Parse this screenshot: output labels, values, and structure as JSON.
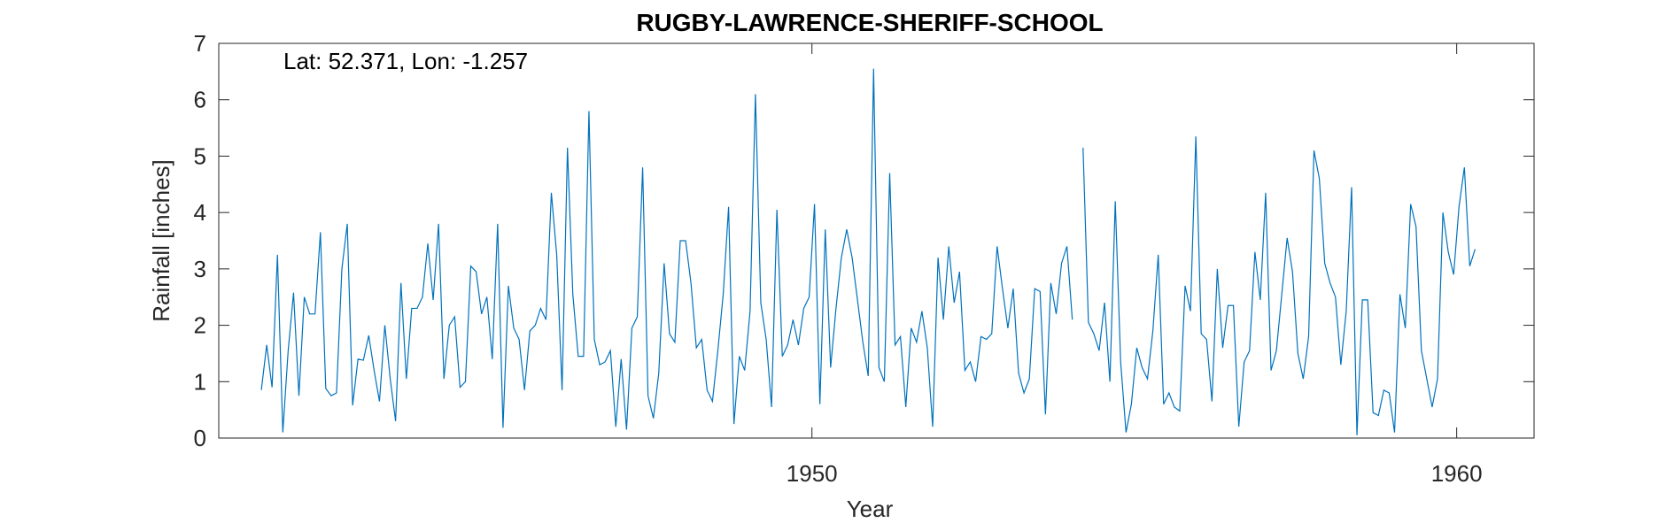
{
  "chart_data": {
    "type": "line",
    "title": "RUGBY-LAWRENCE-SHERIFF-SCHOOL",
    "annotation": "Lat: 52.371, Lon: -1.257",
    "xlabel": "Year",
    "ylabel": "Rainfall [inches]",
    "xlim": [
      1940.8,
      1961.2
    ],
    "ylim": [
      0,
      7
    ],
    "x_ticks": [
      1950,
      1960
    ],
    "y_ticks": [
      0,
      1,
      2,
      3,
      4,
      5,
      6,
      7
    ],
    "grid": false,
    "series": [
      {
        "color": "#0072BD",
        "x_start": 1941.46,
        "step": 0.0833,
        "values": [
          0.85,
          1.65,
          0.9,
          3.25,
          0.1,
          1.55,
          2.58,
          0.75,
          2.5,
          2.2,
          2.2,
          3.65,
          0.88,
          0.75,
          0.8,
          3.0,
          3.8,
          0.58,
          1.4,
          1.38,
          1.82,
          1.2,
          0.65,
          2.0,
          1.05,
          0.3,
          2.75,
          1.05,
          2.3,
          2.3,
          2.5,
          3.45,
          2.45,
          3.8,
          1.05,
          2.0,
          2.15,
          0.9,
          1.0,
          3.05,
          2.95,
          2.2,
          2.5,
          1.4,
          3.8,
          0.18,
          2.7,
          1.95,
          1.75,
          0.85,
          1.9,
          2.0,
          2.3,
          2.1,
          4.35,
          3.25,
          0.85,
          5.15,
          2.55,
          1.45,
          1.45,
          5.8,
          1.75,
          1.3,
          1.35,
          1.55,
          0.2,
          1.4,
          0.15,
          1.95,
          2.15,
          4.8,
          0.75,
          0.35,
          1.15,
          3.1,
          1.85,
          1.7,
          3.5,
          3.5,
          2.75,
          1.6,
          1.75,
          0.85,
          0.65,
          1.55,
          2.55,
          4.1,
          0.25,
          1.45,
          1.2,
          2.25,
          6.1,
          2.4,
          1.75,
          0.55,
          4.05,
          1.45,
          1.65,
          2.1,
          1.65,
          2.3,
          2.5,
          4.15,
          0.6,
          3.7,
          1.25,
          2.3,
          3.2,
          3.7,
          3.2,
          2.45,
          1.7,
          1.1,
          6.55,
          1.25,
          1.0,
          4.7,
          1.65,
          1.8,
          0.55,
          1.95,
          1.7,
          2.25,
          1.6,
          0.2,
          3.2,
          2.1,
          3.4,
          2.4,
          2.95,
          1.2,
          1.35,
          1.0,
          1.8,
          1.75,
          1.85,
          3.4,
          2.65,
          1.95,
          2.65,
          1.15,
          0.8,
          1.05,
          2.65,
          2.6,
          0.42,
          2.75,
          2.2,
          3.1,
          3.4,
          2.1,
          null,
          5.15,
          2.05,
          1.85,
          1.55,
          2.4,
          1.0,
          4.2,
          1.35,
          0.1,
          0.6,
          1.6,
          1.25,
          1.05,
          1.9,
          3.25,
          0.6,
          0.8,
          0.55,
          0.48,
          2.7,
          2.25,
          5.35,
          1.85,
          1.75,
          0.65,
          3.0,
          1.6,
          2.35,
          2.35,
          0.2,
          1.35,
          1.55,
          3.3,
          2.45,
          4.35,
          1.2,
          1.55,
          2.55,
          3.55,
          2.95,
          1.5,
          1.05,
          1.8,
          5.1,
          4.6,
          3.1,
          2.75,
          2.5,
          1.3,
          2.25,
          4.45,
          0.05,
          2.45,
          2.45,
          0.45,
          0.4,
          0.85,
          0.8,
          0.1,
          2.55,
          1.95,
          4.15,
          3.75,
          1.55,
          1.05,
          0.55,
          1.05,
          4.0,
          3.3,
          2.9,
          4.1,
          4.8,
          3.05,
          3.35
        ]
      }
    ]
  }
}
